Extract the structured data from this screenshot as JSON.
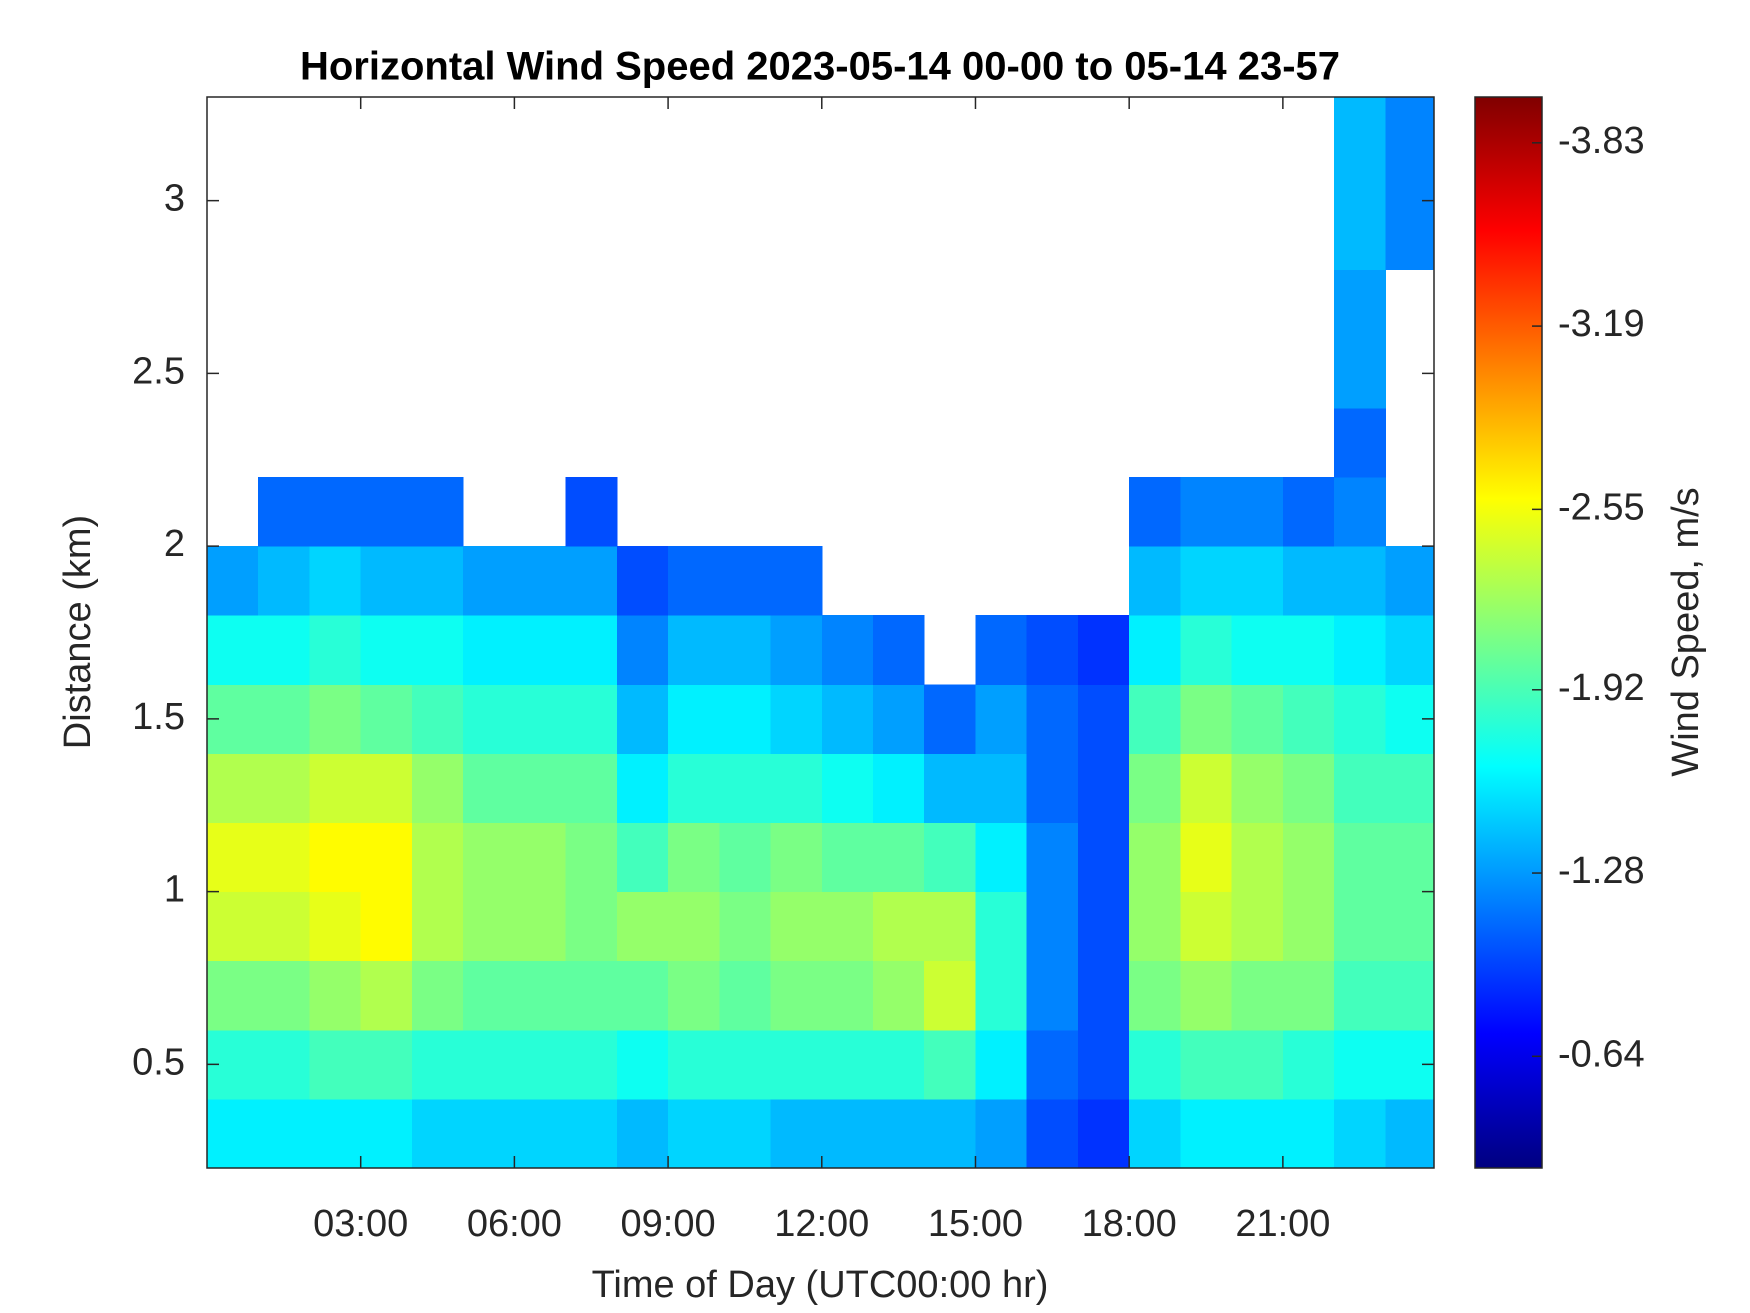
{
  "chart_data": {
    "type": "heatmap",
    "title": "Horizontal Wind Speed 2023-05-14 00-00 to 05-14 23-57",
    "x_label": "Time of Day (UTC00:00 hr)",
    "y_label": "Distance (km)",
    "colorbar_label": "Wind Speed, m/s",
    "colormap": "jet",
    "x_edges": [
      0,
      1,
      2,
      3,
      4,
      5,
      6,
      7,
      8,
      9,
      10,
      11,
      12,
      13,
      14,
      15,
      16,
      17,
      18,
      19,
      20,
      21,
      22,
      23,
      23.95
    ],
    "y_edges": [
      0.2,
      0.4,
      0.6,
      0.8,
      1.0,
      1.2,
      1.4,
      1.6,
      1.8,
      2.0,
      2.2,
      2.4,
      2.8,
      3.3
    ],
    "z": [
      [
        -1.6,
        -1.8,
        -2.1,
        -2.4,
        -2.5,
        -2.3,
        -2.0,
        -1.7,
        -1.3,
        null,
        null,
        null,
        null
      ],
      [
        -1.6,
        -1.8,
        -2.1,
        -2.4,
        -2.5,
        -2.3,
        -2.0,
        -1.7,
        -1.4,
        -1.1,
        null,
        null,
        null
      ],
      [
        -1.6,
        -1.9,
        -2.2,
        -2.5,
        -2.6,
        -2.4,
        -2.1,
        -1.8,
        -1.5,
        -1.1,
        null,
        null,
        null
      ],
      [
        -1.6,
        -1.9,
        -2.3,
        -2.6,
        -2.6,
        -2.4,
        -2.0,
        -1.7,
        -1.4,
        -1.1,
        null,
        null,
        null
      ],
      [
        -1.5,
        -1.8,
        -2.1,
        -2.3,
        -2.3,
        -2.2,
        -1.9,
        -1.7,
        -1.4,
        -1.1,
        null,
        null,
        null
      ],
      [
        -1.5,
        -1.8,
        -2.0,
        -2.2,
        -2.2,
        -2.0,
        -1.8,
        -1.6,
        -1.3,
        null,
        null,
        null,
        null
      ],
      [
        -1.5,
        -1.8,
        -2.0,
        -2.2,
        -2.2,
        -2.0,
        -1.8,
        -1.6,
        -1.3,
        null,
        null,
        null,
        null
      ],
      [
        -1.5,
        -1.8,
        -2.0,
        -2.1,
        -2.1,
        -2.0,
        -1.8,
        -1.6,
        -1.3,
        -1.0,
        null,
        null,
        null
      ],
      [
        -1.4,
        -1.7,
        -2.0,
        -2.2,
        -1.9,
        -1.6,
        -1.4,
        -1.2,
        -1.0,
        null,
        null,
        null,
        null
      ],
      [
        -1.5,
        -1.8,
        -2.1,
        -2.2,
        -2.1,
        -1.8,
        -1.6,
        -1.4,
        -1.1,
        null,
        null,
        null,
        null
      ],
      [
        -1.5,
        -1.8,
        -2.0,
        -2.1,
        -2.0,
        -1.8,
        -1.6,
        -1.4,
        -1.1,
        null,
        null,
        null,
        null
      ],
      [
        -1.4,
        -1.8,
        -2.1,
        -2.2,
        -2.1,
        -1.8,
        -1.5,
        -1.3,
        -1.1,
        null,
        null,
        null,
        null
      ],
      [
        -1.4,
        -1.8,
        -2.1,
        -2.2,
        -2.0,
        -1.7,
        -1.4,
        -1.2,
        null,
        null,
        null,
        null,
        null
      ],
      [
        -1.4,
        -1.8,
        -2.2,
        -2.3,
        -2.0,
        -1.6,
        -1.3,
        -1.1,
        null,
        null,
        null,
        null,
        null
      ],
      [
        -1.4,
        -1.9,
        -2.4,
        -2.3,
        -1.9,
        -1.4,
        -1.1,
        null,
        null,
        null,
        null,
        null,
        null
      ],
      [
        -1.3,
        -1.6,
        -1.8,
        -1.8,
        -1.6,
        -1.4,
        -1.3,
        -1.1,
        null,
        null,
        null,
        null,
        null
      ],
      [
        -1.0,
        -1.1,
        -1.2,
        -1.2,
        -1.2,
        -1.1,
        -1.1,
        -1.0,
        null,
        null,
        null,
        null,
        null
      ],
      [
        -0.9,
        -1.0,
        -1.0,
        -1.0,
        -1.0,
        -1.0,
        -1.0,
        -0.9,
        null,
        null,
        null,
        null,
        null
      ],
      [
        -1.5,
        -1.8,
        -2.1,
        -2.2,
        -2.2,
        -2.1,
        -1.9,
        -1.6,
        -1.4,
        -1.1,
        null,
        null,
        null
      ],
      [
        -1.6,
        -1.9,
        -2.2,
        -2.4,
        -2.5,
        -2.4,
        -2.1,
        -1.8,
        -1.5,
        -1.2,
        null,
        null,
        null
      ],
      [
        -1.6,
        -1.9,
        -2.1,
        -2.3,
        -2.3,
        -2.2,
        -2.0,
        -1.7,
        -1.5,
        -1.2,
        null,
        null,
        null
      ],
      [
        -1.6,
        -1.8,
        -2.1,
        -2.2,
        -2.2,
        -2.1,
        -1.9,
        -1.7,
        -1.4,
        -1.1,
        null,
        null,
        null
      ],
      [
        -1.5,
        -1.7,
        -1.9,
        -2.0,
        -2.0,
        -1.9,
        -1.8,
        -1.6,
        -1.4,
        -1.2,
        -1.1,
        -1.3,
        -1.4
      ],
      [
        -1.4,
        -1.7,
        -1.9,
        -2.0,
        -2.0,
        -1.9,
        -1.7,
        -1.5,
        -1.3,
        null,
        null,
        null,
        -1.2
      ]
    ],
    "xlim": [
      0,
      23.95
    ],
    "ylim": [
      0.2,
      3.3
    ],
    "xticks": [
      {
        "value": 3,
        "label": "03:00"
      },
      {
        "value": 6,
        "label": "06:00"
      },
      {
        "value": 9,
        "label": "09:00"
      },
      {
        "value": 12,
        "label": "12:00"
      },
      {
        "value": 15,
        "label": "15:00"
      },
      {
        "value": 18,
        "label": "18:00"
      },
      {
        "value": 21,
        "label": "21:00"
      }
    ],
    "yticks": [
      0.5,
      1,
      1.5,
      2,
      2.5,
      3
    ],
    "clim": [
      -0.25,
      -3.99
    ],
    "cticks": [
      -0.64,
      -1.28,
      -1.92,
      -2.55,
      -3.19,
      -3.83
    ]
  }
}
